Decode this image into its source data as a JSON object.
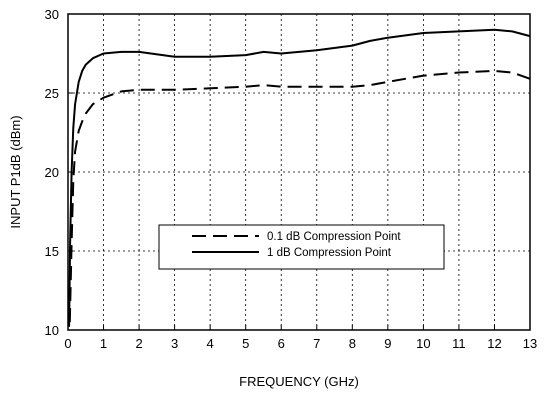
{
  "chart_data": {
    "type": "line",
    "title": "",
    "xlabel": "FREQUENCY (GHz)",
    "ylabel": "INPUT P1dB (dBm)",
    "xlim": [
      0,
      13
    ],
    "ylim": [
      10,
      30
    ],
    "xticks": [
      0,
      1,
      2,
      3,
      4,
      5,
      6,
      7,
      8,
      9,
      10,
      11,
      12,
      13
    ],
    "yticks": [
      10,
      15,
      20,
      25,
      30
    ],
    "grid": true,
    "grid_style": "dotted",
    "legend_position": "center-right",
    "series": [
      {
        "name": "0.1 dB Compression Point",
        "line_style": "dashed",
        "color": "#000000",
        "x": [
          0.05,
          0.1,
          0.15,
          0.2,
          0.3,
          0.4,
          0.5,
          0.7,
          1.0,
          1.5,
          2.0,
          3.0,
          4.0,
          5.0,
          5.5,
          6.0,
          7.0,
          8.0,
          8.5,
          9.0,
          10.0,
          11.0,
          12.0,
          12.5,
          13.0
        ],
        "y": [
          10.5,
          15.5,
          19.5,
          21.3,
          22.6,
          23.2,
          23.7,
          24.3,
          24.7,
          25.1,
          25.2,
          25.2,
          25.3,
          25.4,
          25.5,
          25.4,
          25.4,
          25.4,
          25.5,
          25.7,
          26.1,
          26.3,
          26.4,
          26.3,
          25.9
        ]
      },
      {
        "name": "1 dB Compression Point",
        "line_style": "solid",
        "color": "#000000",
        "x": [
          0.03,
          0.06,
          0.1,
          0.15,
          0.2,
          0.3,
          0.4,
          0.5,
          0.7,
          1.0,
          1.5,
          2.0,
          3.0,
          4.0,
          5.0,
          5.5,
          6.0,
          7.0,
          8.0,
          8.5,
          9.0,
          10.0,
          11.0,
          12.0,
          12.5,
          13.0
        ],
        "y": [
          10.2,
          15.5,
          20.0,
          22.8,
          24.3,
          25.7,
          26.4,
          26.8,
          27.2,
          27.5,
          27.6,
          27.6,
          27.3,
          27.3,
          27.4,
          27.6,
          27.5,
          27.7,
          28.0,
          28.3,
          28.5,
          28.8,
          28.9,
          29.0,
          28.9,
          28.6
        ]
      }
    ]
  }
}
